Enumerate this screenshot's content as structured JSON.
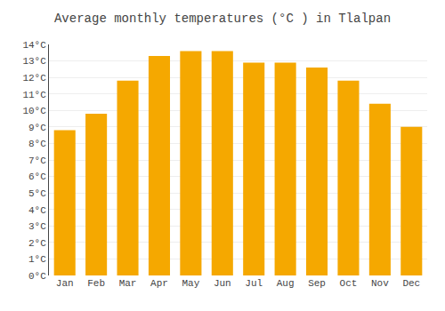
{
  "chart_data": {
    "type": "bar",
    "title": "Average monthly temperatures (°C ) in Tlalpan",
    "categories": [
      "Jan",
      "Feb",
      "Mar",
      "Apr",
      "May",
      "Jun",
      "Jul",
      "Aug",
      "Sep",
      "Oct",
      "Nov",
      "Dec"
    ],
    "values": [
      8.8,
      9.8,
      11.8,
      13.3,
      13.6,
      13.6,
      12.9,
      12.9,
      12.6,
      11.8,
      10.4,
      9.0
    ],
    "color": "#F5A800",
    "ylim": [
      0,
      14
    ],
    "yticks": [
      {
        "value": 0,
        "label": "0°C"
      },
      {
        "value": 1,
        "label": "1°C"
      },
      {
        "value": 2,
        "label": "2°C"
      },
      {
        "value": 3,
        "label": "3°C"
      },
      {
        "value": 4,
        "label": "4°C"
      },
      {
        "value": 5,
        "label": "5°C"
      },
      {
        "value": 6,
        "label": "6°C"
      },
      {
        "value": 7,
        "label": "7°C"
      },
      {
        "value": 8,
        "label": "8°C"
      },
      {
        "value": 9,
        "label": "9°C"
      },
      {
        "value": 10,
        "label": "10°C"
      },
      {
        "value": 11,
        "label": "11°C"
      },
      {
        "value": 12,
        "label": "12°C"
      },
      {
        "value": 13,
        "label": "13°C"
      },
      {
        "value": 14,
        "label": "14°C"
      }
    ],
    "grid": true
  }
}
